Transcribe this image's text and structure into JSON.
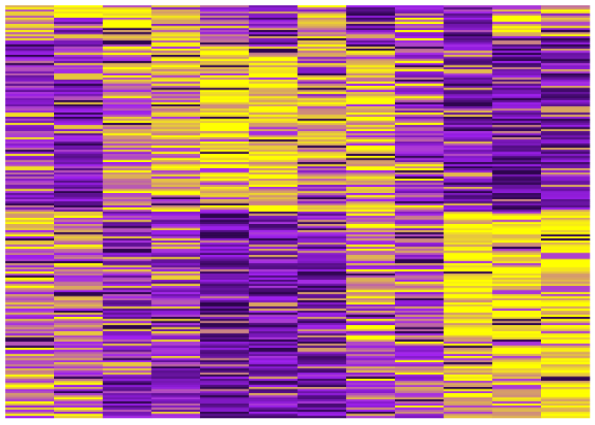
{
  "chart_data": {
    "type": "heatmap",
    "title": "",
    "xlabel": "",
    "ylabel": "",
    "n_columns": 12,
    "n_rows": 200,
    "grid": false,
    "legend": "none",
    "color_scale": {
      "low": "#1a0033",
      "mid": "#a020f0",
      "high": "#ffff00",
      "domain": [
        -1,
        0,
        1
      ]
    },
    "column_blocks": [
      [
        {
          "rows": [
            0,
            15
          ],
          "mean": 0.5
        },
        {
          "rows": [
            15,
            100
          ],
          "mean": -0.05
        },
        {
          "rows": [
            100,
            200
          ],
          "mean": 0.35
        }
      ],
      [
        {
          "rows": [
            0,
            6
          ],
          "mean": 1.0
        },
        {
          "rows": [
            6,
            100
          ],
          "mean": -0.15
        },
        {
          "rows": [
            100,
            200
          ],
          "mean": 0.35
        }
      ],
      [
        {
          "rows": [
            0,
            20
          ],
          "mean": 1.0
        },
        {
          "rows": [
            20,
            100
          ],
          "mean": 0.35
        },
        {
          "rows": [
            100,
            200
          ],
          "mean": -0.15
        }
      ],
      [
        {
          "rows": [
            0,
            20
          ],
          "mean": 0.6
        },
        {
          "rows": [
            20,
            100
          ],
          "mean": 0.5
        },
        {
          "rows": [
            100,
            200
          ],
          "mean": -0.1
        }
      ],
      [
        {
          "rows": [
            0,
            20
          ],
          "mean": 0.05
        },
        {
          "rows": [
            20,
            100
          ],
          "mean": 0.85
        },
        {
          "rows": [
            100,
            200
          ],
          "mean": -0.45
        }
      ],
      [
        {
          "rows": [
            0,
            20
          ],
          "mean": -0.3
        },
        {
          "rows": [
            20,
            100
          ],
          "mean": 0.85
        },
        {
          "rows": [
            100,
            200
          ],
          "mean": -0.3
        }
      ],
      [
        {
          "rows": [
            0,
            100
          ],
          "mean": 0.6
        },
        {
          "rows": [
            100,
            200
          ],
          "mean": -0.35
        }
      ],
      [
        {
          "rows": [
            0,
            20
          ],
          "mean": -0.3
        },
        {
          "rows": [
            20,
            100
          ],
          "mean": 0.8
        },
        {
          "rows": [
            100,
            200
          ],
          "mean": 0.25
        }
      ],
      [
        {
          "rows": [
            0,
            100
          ],
          "mean": 0.1
        },
        {
          "rows": [
            100,
            200
          ],
          "mean": 0.2
        }
      ],
      [
        {
          "rows": [
            0,
            100
          ],
          "mean": -0.2
        },
        {
          "rows": [
            100,
            200
          ],
          "mean": 0.9
        }
      ],
      [
        {
          "rows": [
            0,
            15
          ],
          "mean": 0.9
        },
        {
          "rows": [
            15,
            100
          ],
          "mean": -0.45
        },
        {
          "rows": [
            100,
            200
          ],
          "mean": 0.9
        }
      ],
      [
        {
          "rows": [
            0,
            15
          ],
          "mean": 0.6
        },
        {
          "rows": [
            15,
            100
          ],
          "mean": -0.3
        },
        {
          "rows": [
            100,
            200
          ],
          "mean": 0.95
        }
      ]
    ]
  }
}
